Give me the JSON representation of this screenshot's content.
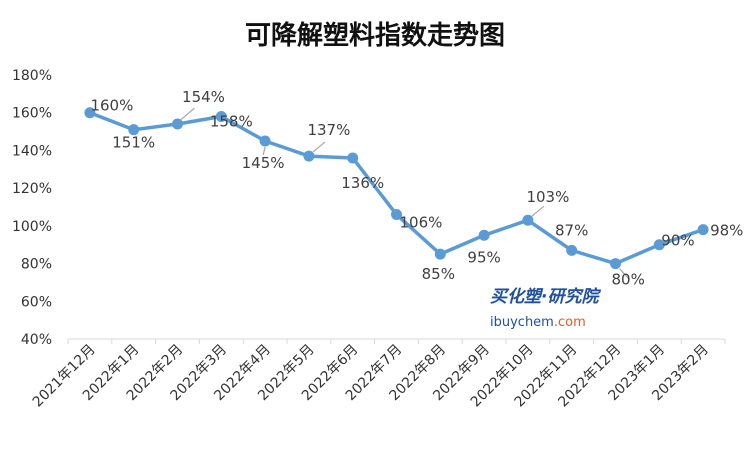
{
  "chart_data": {
    "type": "line",
    "title": "可降解塑料指数走势图",
    "xlabel": "",
    "ylabel": "",
    "ylim": [
      40,
      180
    ],
    "yticks": [
      "40%",
      "60%",
      "80%",
      "100%",
      "120%",
      "140%",
      "160%",
      "180%"
    ],
    "categories": [
      "2021年12月",
      "2022年1月",
      "2022年2月",
      "2022年3月",
      "2022年4月",
      "2022年5月",
      "2022年6月",
      "2022年7月",
      "2022年8月",
      "2022年9月",
      "2022年10月",
      "2022年11月",
      "2022年12月",
      "2023年1月",
      "2023年2月"
    ],
    "series": [
      {
        "values": [
          160,
          151,
          154,
          158,
          145,
          137,
          136,
          106,
          85,
          95,
          103,
          87,
          80,
          90,
          98
        ],
        "labels": [
          "160%",
          "151%",
          "154%",
          "158%",
          "145%",
          "137%",
          "136%",
          "106%",
          "85%",
          "95%",
          "103%",
          "87%",
          "80%",
          "90%",
          "98%"
        ]
      }
    ],
    "grid": false,
    "legend": "none",
    "line_color": "#5b9bd5"
  },
  "watermark": {
    "cn": "买化塑·研究院",
    "site": "ibuychem",
    "tld": ".com"
  }
}
